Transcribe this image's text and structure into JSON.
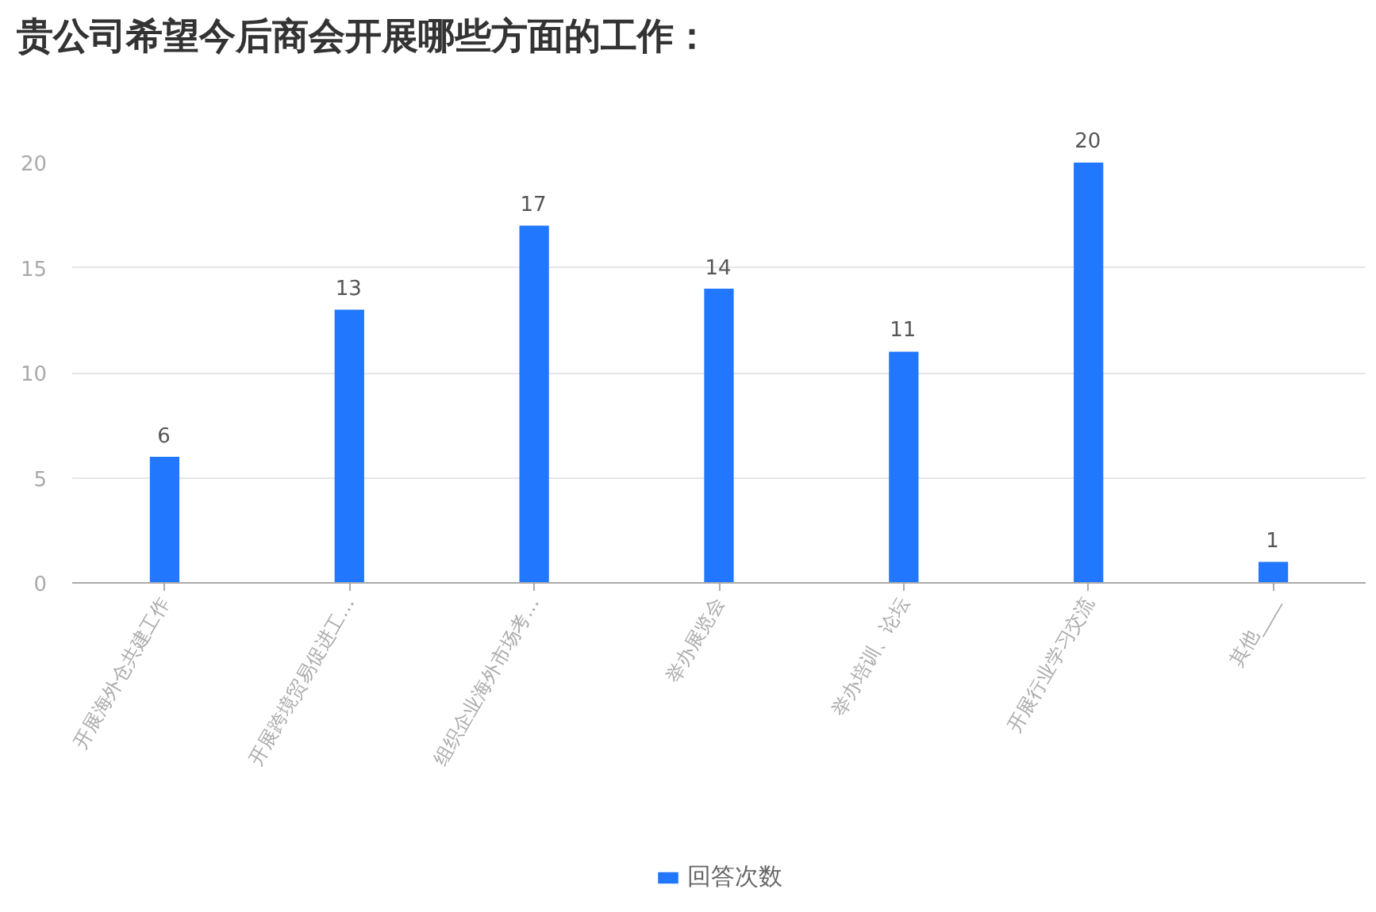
{
  "chart_data": {
    "type": "bar",
    "title": "贵公司希望今后商会开展哪些方面的工作：",
    "categories": [
      "开展海外仓共建工作",
      "开展跨境贸易促进工…",
      "组织企业海外市场考…",
      "举办展览会",
      "举办培训、论坛",
      "开展行业学习交流",
      "其他____"
    ],
    "series": [
      {
        "name": "回答次数",
        "color": "#2178ff",
        "values": [
          6,
          13,
          17,
          14,
          11,
          20,
          1
        ]
      }
    ],
    "ylim": [
      0,
      20
    ],
    "yticks": [
      0,
      5,
      10,
      15,
      20
    ],
    "grid": "y",
    "legend": "bottom",
    "data_labels": true
  }
}
